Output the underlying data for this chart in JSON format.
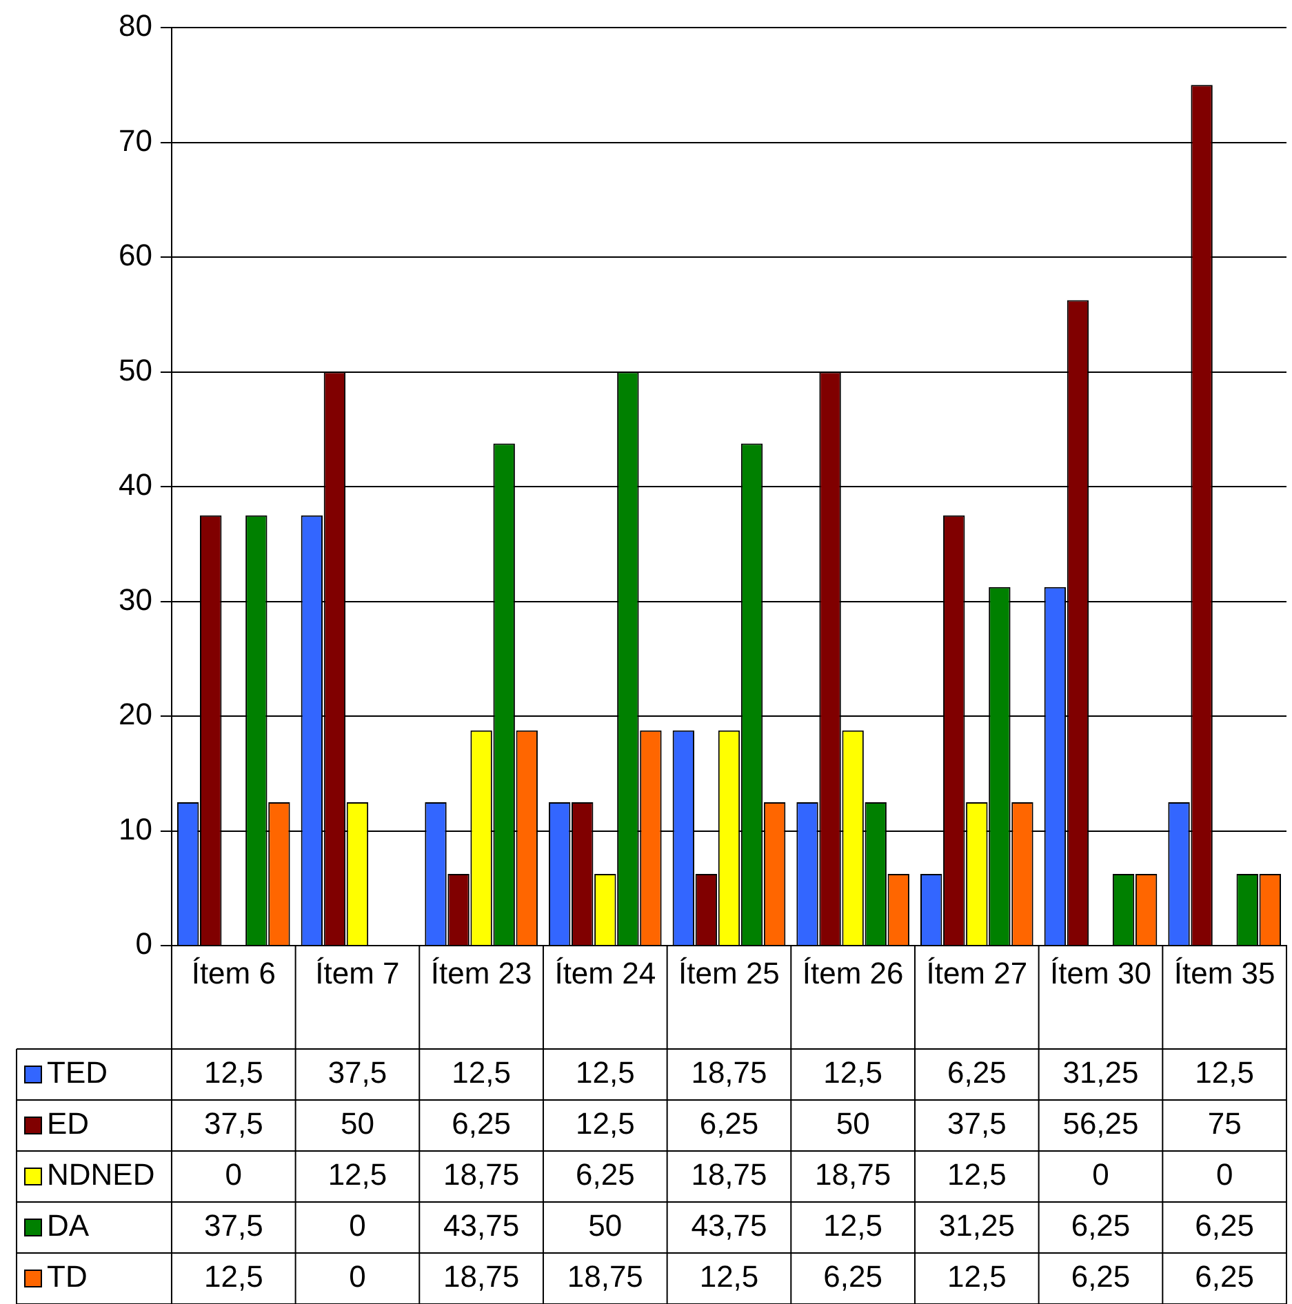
{
  "chart_data": {
    "type": "bar",
    "categories": [
      "Ítem 6",
      "Ítem 7",
      "Ítem 23",
      "Ítem 24",
      "Ítem 25",
      "Ítem 26",
      "Ítem 27",
      "Ítem 30",
      "Ítem 35"
    ],
    "series": [
      {
        "name": "TED",
        "color": "#3366ff",
        "values": [
          12.5,
          37.5,
          12.5,
          12.5,
          18.75,
          12.5,
          6.25,
          31.25,
          12.5
        ],
        "value_labels": [
          "12,5",
          "37,5",
          "12,5",
          "12,5",
          "18,75",
          "12,5",
          "6,25",
          "31,25",
          "12,5"
        ]
      },
      {
        "name": "ED",
        "color": "#800000",
        "values": [
          37.5,
          50,
          6.25,
          12.5,
          6.25,
          50,
          37.5,
          56.25,
          75
        ],
        "value_labels": [
          "37,5",
          "50",
          "6,25",
          "12,5",
          "6,25",
          "50",
          "37,5",
          "56,25",
          "75"
        ]
      },
      {
        "name": "NDNED",
        "color": "#ffff00",
        "values": [
          0,
          12.5,
          18.75,
          6.25,
          18.75,
          18.75,
          12.5,
          0,
          0
        ],
        "value_labels": [
          "0",
          "12,5",
          "18,75",
          "6,25",
          "18,75",
          "18,75",
          "12,5",
          "0",
          "0"
        ]
      },
      {
        "name": "DA",
        "color": "#008000",
        "values": [
          37.5,
          0,
          43.75,
          50,
          43.75,
          12.5,
          31.25,
          6.25,
          6.25
        ],
        "value_labels": [
          "37,5",
          "0",
          "43,75",
          "50",
          "43,75",
          "12,5",
          "31,25",
          "6,25",
          "6,25"
        ]
      },
      {
        "name": "TD",
        "color": "#ff6600",
        "values": [
          12.5,
          0,
          18.75,
          18.75,
          12.5,
          6.25,
          12.5,
          6.25,
          6.25
        ],
        "value_labels": [
          "12,5",
          "0",
          "18,75",
          "18,75",
          "12,5",
          "6,25",
          "12,5",
          "6,25",
          "6,25"
        ]
      }
    ],
    "ylim": [
      0,
      80
    ],
    "yticks": [
      0,
      10,
      20,
      30,
      40,
      50,
      60,
      70,
      80
    ],
    "grid": "y",
    "legend": "bottom"
  }
}
